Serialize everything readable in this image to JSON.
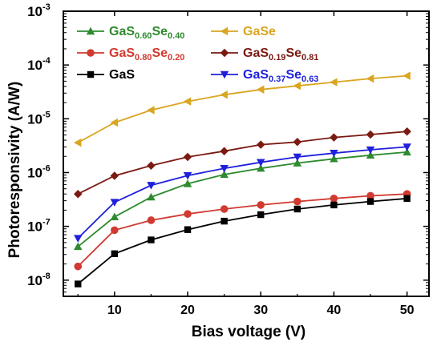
{
  "chart_data": {
    "type": "line",
    "xlabel": "Bias voltage (V)",
    "ylabel": "Photoresponsivity (A/W)",
    "xlim": [
      3,
      53
    ],
    "ylim": [
      5e-09,
      0.001
    ],
    "yscale": "log",
    "x_ticks": [
      10,
      20,
      30,
      40,
      50
    ],
    "y_tick_exponents": [
      -8,
      -7,
      -6,
      -5,
      -4,
      -3
    ],
    "y_tick_base": "10",
    "legend_placement": "top-left",
    "x": [
      5,
      10,
      15,
      20,
      25,
      30,
      35,
      40,
      45,
      50
    ],
    "series": [
      {
        "name": "GaS0.60Se0.40",
        "label_parts": [
          "GaS",
          "0.60",
          "Se",
          "0.40"
        ],
        "color": "#2e8b2e",
        "marker": "triangle-up",
        "values": [
          4.2e-08,
          1.5e-07,
          3.5e-07,
          6.2e-07,
          9.2e-07,
          1.2e-06,
          1.5e-06,
          1.8e-06,
          2.1e-06,
          2.4e-06
        ]
      },
      {
        "name": "GaSe",
        "label_parts": [
          "GaSe"
        ],
        "color": "#daa520",
        "marker": "triangle-left",
        "values": [
          3.6e-06,
          8.5e-06,
          1.45e-05,
          2.1e-05,
          2.8e-05,
          3.5e-05,
          4.1e-05,
          4.8e-05,
          5.6e-05,
          6.3e-05
        ]
      },
      {
        "name": "GaS0.80Se0.20",
        "label_parts": [
          "GaS",
          "0.80",
          "Se",
          "0.20"
        ],
        "color": "#d03a30",
        "marker": "circle",
        "values": [
          1.8e-08,
          8.5e-08,
          1.3e-07,
          1.7e-07,
          2.1e-07,
          2.5e-07,
          2.9e-07,
          3.3e-07,
          3.7e-07,
          4e-07
        ]
      },
      {
        "name": "GaS0.19Se0.81",
        "label_parts": [
          "GaS",
          "0.19",
          "Se",
          "0.81"
        ],
        "color": "#7a1a12",
        "marker": "diamond",
        "values": [
          4e-07,
          8.7e-07,
          1.35e-06,
          1.95e-06,
          2.5e-06,
          3.3e-06,
          3.7e-06,
          4.5e-06,
          5.1e-06,
          5.8e-06
        ]
      },
      {
        "name": "GaS",
        "label_parts": [
          "GaS"
        ],
        "color": "#000000",
        "marker": "square",
        "values": [
          8.5e-09,
          3.1e-08,
          5.6e-08,
          8.7e-08,
          1.25e-07,
          1.65e-07,
          2.1e-07,
          2.5e-07,
          2.9e-07,
          3.3e-07
        ]
      },
      {
        "name": "GaS0.37Se0.63",
        "label_parts": [
          "GaS",
          "0.37",
          "Se",
          "0.63"
        ],
        "color": "#1f1fdc",
        "marker": "triangle-down",
        "values": [
          6e-08,
          2.8e-07,
          5.8e-07,
          8.8e-07,
          1.2e-06,
          1.55e-06,
          1.95e-06,
          2.3e-06,
          2.65e-06,
          3e-06
        ]
      }
    ]
  }
}
